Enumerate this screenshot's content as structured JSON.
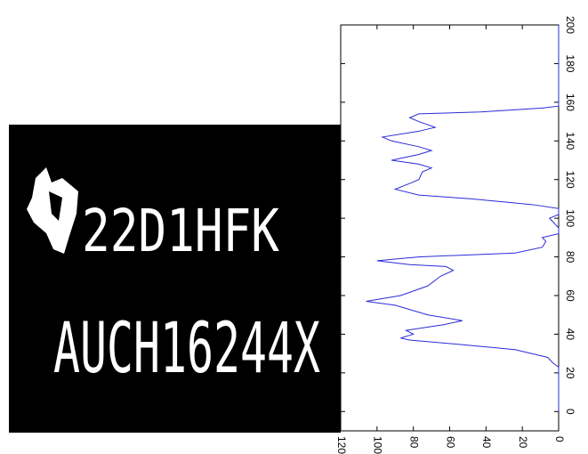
{
  "image": {
    "lines": [
      "22D1HFK",
      "AUCH16244X"
    ]
  },
  "chart_data": {
    "type": "line",
    "x": [
      0,
      10,
      20,
      23,
      25,
      28,
      32,
      35,
      37,
      38,
      40,
      42,
      45,
      47,
      50,
      55,
      57,
      60,
      65,
      70,
      73,
      75,
      76,
      78,
      80,
      82,
      85,
      88,
      90,
      92,
      95,
      98,
      100,
      102,
      105,
      107,
      110,
      112,
      115,
      118,
      120,
      124,
      126,
      128,
      130,
      133,
      135,
      137,
      140,
      142,
      145,
      147,
      150,
      152,
      154,
      155,
      157,
      158,
      170,
      185,
      200
    ],
    "series": [
      {
        "color": "#2b2bd9",
        "values": [
          0,
          0,
          0,
          0,
          3,
          6,
          24,
          58,
          82,
          87,
          80,
          84,
          63,
          53,
          72,
          90,
          106,
          87,
          72,
          65,
          58,
          62,
          82,
          100,
          77,
          24,
          9,
          7,
          9,
          0,
          0,
          3,
          5,
          0,
          0,
          14,
          48,
          77,
          90,
          82,
          77,
          75,
          70,
          77,
          92,
          77,
          70,
          77,
          92,
          97,
          77,
          68,
          77,
          82,
          77,
          43,
          9,
          0,
          0,
          0,
          0
        ]
      }
    ],
    "xlim": [
      -10,
      200
    ],
    "xticks": [
      0,
      20,
      40,
      60,
      80,
      100,
      120,
      140,
      160,
      180,
      200
    ],
    "ylim": [
      0,
      120
    ],
    "yticks": [
      0,
      20,
      40,
      60,
      80,
      100,
      120
    ]
  }
}
